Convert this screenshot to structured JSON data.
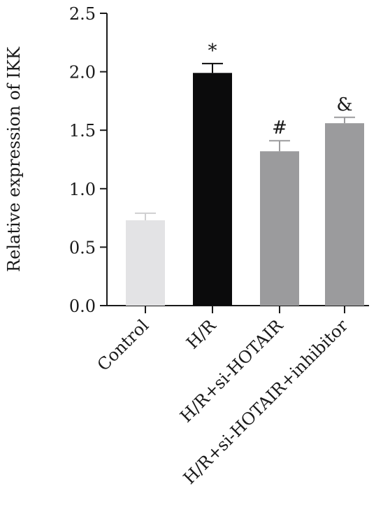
{
  "chart_data": {
    "type": "bar",
    "title": "",
    "xlabel": "",
    "ylabel": "Relative expression of IKK",
    "ylim": [
      0,
      2.5
    ],
    "yticks": [
      "0.0",
      "0.5",
      "1.0",
      "1.5",
      "2.0",
      "2.5"
    ],
    "categories": [
      "Control",
      "H/R",
      "H/R+si-HOTAIR",
      "H/R+si-HOTAIR+inhibitor"
    ],
    "values": [
      0.73,
      1.99,
      1.32,
      1.56
    ],
    "errors": [
      0.06,
      0.08,
      0.09,
      0.05
    ],
    "annotations": [
      "",
      "*",
      "#",
      "&"
    ],
    "bar_colors": [
      "#e3e3e5",
      "#0b0b0c",
      "#9b9b9d",
      "#9b9b9d"
    ],
    "error_colors": [
      "#cfcfd1",
      "#0b0b0c",
      "#9b9b9d",
      "#9b9b9d"
    ],
    "grid": false,
    "legend": "none"
  }
}
